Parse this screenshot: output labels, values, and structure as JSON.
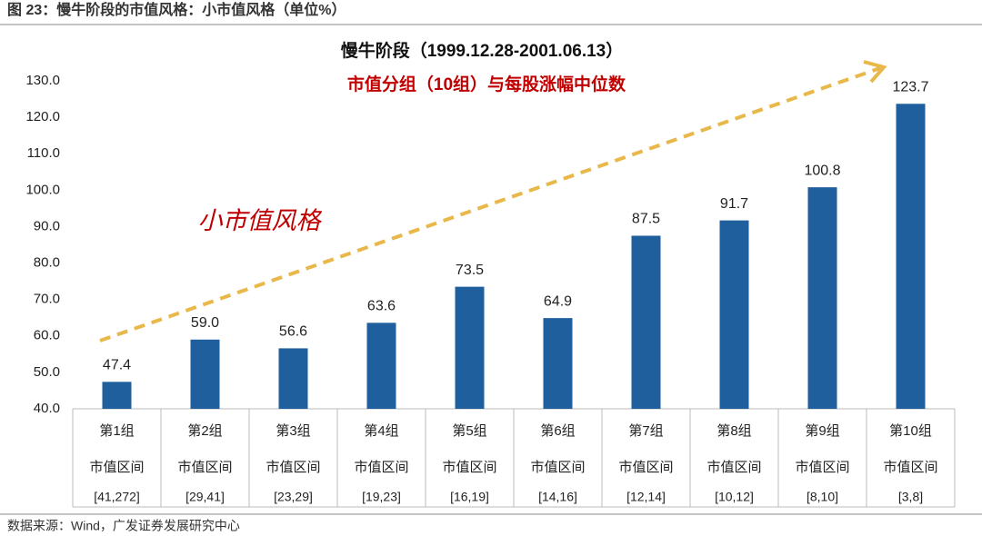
{
  "header": "图 23：慢牛阶段的市值风格：小市值风格（单位%）",
  "source": "数据来源：Wind，广发证券发展研究中心",
  "chart_data": {
    "type": "bar",
    "title": "慢牛阶段（1999.12.28-2001.06.13）",
    "subtitle": "市值分组（10组）与每股涨幅中位数",
    "annotation": "小市值风格",
    "categories": [
      "第1组",
      "第2组",
      "第3组",
      "第4组",
      "第5组",
      "第6组",
      "第7组",
      "第8组",
      "第9组",
      "第10组"
    ],
    "range_label": "市值区间",
    "category_ranges": [
      "[41,272]",
      "[29,41]",
      "[23,29]",
      "[19,23]",
      "[16,19]",
      "[14,16]",
      "[12,14]",
      "[10,12]",
      "[8,10]",
      "[3,8]"
    ],
    "values": [
      47.4,
      59.0,
      56.6,
      63.6,
      73.5,
      64.9,
      87.5,
      91.7,
      100.8,
      123.7
    ],
    "value_labels": [
      "47.4",
      "59.0",
      "56.6",
      "63.6",
      "73.5",
      "64.9",
      "87.5",
      "91.7",
      "100.8",
      "123.7"
    ],
    "color": "#1f5f9e",
    "ylim": [
      40,
      130
    ],
    "yticks": [
      {
        "value": 40,
        "label": "40.0"
      },
      {
        "value": 50,
        "label": "50.0"
      },
      {
        "value": 60,
        "label": "60.0"
      },
      {
        "value": 70,
        "label": "70.0"
      },
      {
        "value": 80,
        "label": "80.0"
      },
      {
        "value": 90,
        "label": "90.0"
      },
      {
        "value": 100,
        "label": "100.0"
      },
      {
        "value": 110,
        "label": "110.0"
      },
      {
        "value": 120,
        "label": "120.0"
      },
      {
        "value": 130,
        "label": "130.0"
      }
    ],
    "grid": false
  }
}
